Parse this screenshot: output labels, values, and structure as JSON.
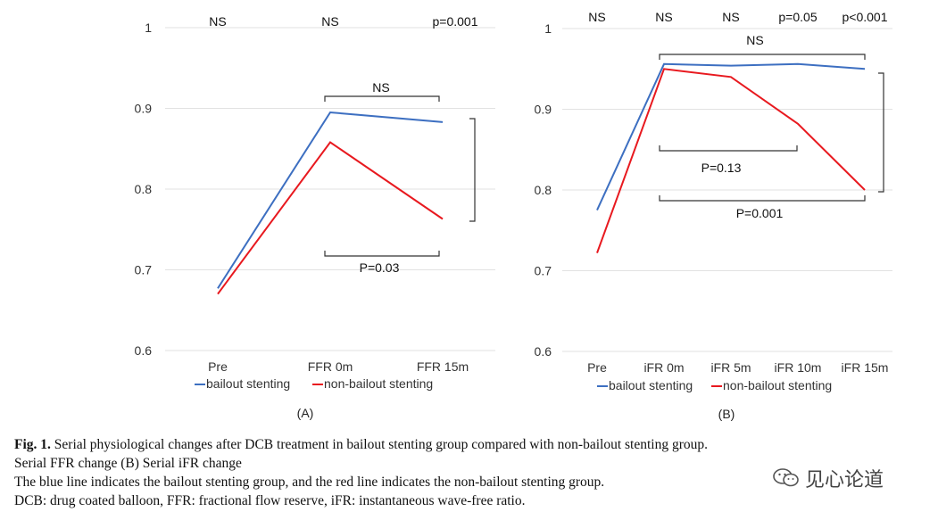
{
  "chart_data": [
    {
      "type": "line",
      "panel_label": "(A)",
      "categories": [
        "Pre",
        "FFR 0m",
        "FFR 15m"
      ],
      "ylim": [
        0.6,
        1.0
      ],
      "yticks": [
        "0.6",
        "0.7",
        "0.8",
        "0.9",
        "1"
      ],
      "grid": true,
      "series": [
        {
          "name": "bailout stenting",
          "color": "#3d6fc1",
          "values": [
            0.677,
            0.895,
            0.883
          ]
        },
        {
          "name": "non-bailout stenting",
          "color": "#e8191f",
          "values": [
            0.67,
            0.858,
            0.763
          ]
        }
      ],
      "top_annotations": [
        "NS",
        "NS",
        "p=0.001"
      ],
      "annotations": [
        "NS",
        "P=0.03"
      ],
      "legend": [
        "bailout stenting",
        "non-bailout stenting"
      ]
    },
    {
      "type": "line",
      "panel_label": "(B)",
      "categories": [
        "Pre",
        "iFR 0m",
        "iFR 5m",
        "iFR 10m",
        "iFR 15m"
      ],
      "ylim": [
        0.6,
        1.0
      ],
      "yticks": [
        "0.6",
        "0.7",
        "0.8",
        "0.9",
        "1"
      ],
      "grid": true,
      "series": [
        {
          "name": "bailout stenting",
          "color": "#3d6fc1",
          "values": [
            0.775,
            0.956,
            0.954,
            0.956,
            0.95
          ]
        },
        {
          "name": "non-bailout stenting",
          "color": "#e8191f",
          "values": [
            0.722,
            0.95,
            0.94,
            0.882,
            0.8
          ]
        }
      ],
      "top_annotations": [
        "NS",
        "NS",
        "NS",
        "p=0.05",
        "p<0.001"
      ],
      "annotations": [
        "NS",
        "P=0.13",
        "P=0.001"
      ],
      "legend": [
        "bailout stenting",
        "non-bailout stenting"
      ]
    }
  ],
  "caption": {
    "fig_label": "Fig. 1.",
    "line1": "Serial physiological changes after DCB treatment in bailout stenting group compared with non-bailout stenting group.",
    "line2": "Serial FFR change (B) Serial iFR change",
    "line3": "The blue line indicates the bailout stenting group, and the red line indicates the non-bailout stenting group.",
    "line4": "DCB: drug coated balloon, FFR: fractional flow reserve, iFR: instantaneous wave-free ratio."
  },
  "watermark": "见心论道"
}
